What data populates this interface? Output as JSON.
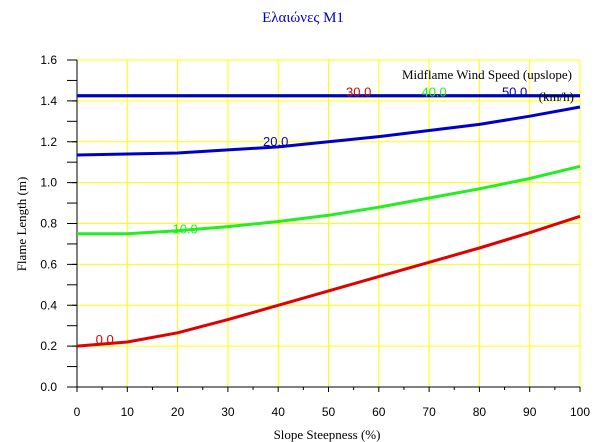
{
  "chart_data": {
    "type": "line",
    "title": "Ελαιώνες Μ1",
    "xlabel": "Slope Steepness (%)",
    "ylabel": "Flame Length (m)",
    "xlim": [
      0,
      100
    ],
    "ylim": [
      0,
      1.6
    ],
    "x_ticks": [
      "0",
      "10",
      "20",
      "30",
      "40",
      "50",
      "60",
      "70",
      "80",
      "90",
      "100"
    ],
    "y_ticks": [
      "0.0",
      "0.2",
      "0.4",
      "0.6",
      "0.8",
      "1.0",
      "1.2",
      "1.4",
      "1.6"
    ],
    "grid": true,
    "legend_title": "Midflame Wind Speed (upslope)",
    "legend_units": "(km/h)",
    "title_color": "#0000cc",
    "series": [
      {
        "name": "0.0",
        "color": "#e00000",
        "x": [
          0,
          10,
          20,
          30,
          40,
          50,
          60,
          70,
          80,
          90,
          100
        ],
        "y": [
          0.2,
          0.22,
          0.265,
          0.33,
          0.4,
          0.47,
          0.54,
          0.61,
          0.68,
          0.755,
          0.835
        ]
      },
      {
        "name": "10.0",
        "color": "#22ee22",
        "x": [
          0,
          10,
          20,
          30,
          40,
          50,
          60,
          70,
          80,
          90,
          100
        ],
        "y": [
          0.75,
          0.75,
          0.765,
          0.785,
          0.81,
          0.84,
          0.88,
          0.925,
          0.97,
          1.02,
          1.08
        ]
      },
      {
        "name": "20.0",
        "color": "#0000cc",
        "x": [
          0,
          10,
          20,
          30,
          40,
          50,
          60,
          70,
          80,
          90,
          100
        ],
        "y": [
          1.135,
          1.14,
          1.145,
          1.16,
          1.175,
          1.2,
          1.225,
          1.255,
          1.285,
          1.325,
          1.37
        ]
      },
      {
        "name": "30.0",
        "color": "#e00000",
        "x": [
          0,
          100
        ],
        "y": [
          1.425,
          1.425
        ]
      },
      {
        "name": "40.0",
        "color": "#22ee22",
        "x": [
          0,
          100
        ],
        "y": [
          1.425,
          1.425
        ]
      },
      {
        "name": "50.0",
        "color": "#0000cc",
        "x": [
          0,
          100
        ],
        "y": [
          1.425,
          1.425
        ]
      }
    ],
    "curve_labels": [
      {
        "text": "0.0",
        "color": "#e00000",
        "x": 5.5,
        "y": 0.23
      },
      {
        "text": "10.0",
        "color": "#22ee22",
        "x": 21.5,
        "y": 0.77
      },
      {
        "text": "20.0",
        "color": "#0000cc",
        "x": 39.5,
        "y": 1.2
      },
      {
        "text": "30.0",
        "color": "#e00000",
        "x": 56,
        "y": 1.44
      },
      {
        "text": "40.0",
        "color": "#22ee22",
        "x": 71,
        "y": 1.44
      },
      {
        "text": "50.0",
        "color": "#0000cc",
        "x": 87,
        "y": 1.44
      }
    ]
  }
}
